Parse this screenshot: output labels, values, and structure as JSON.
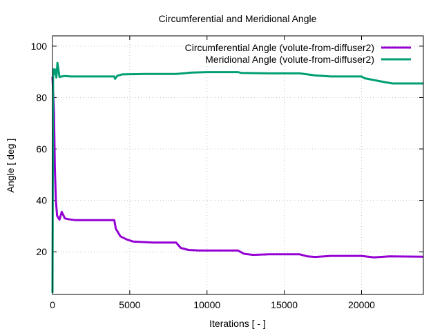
{
  "chart_data": {
    "type": "line",
    "title": "Circumferential and Meridional Angle",
    "xlabel": "Iterations [ - ]",
    "ylabel": "Angle [ deg ]",
    "xlim": [
      0,
      24000
    ],
    "ylim": [
      3.4,
      104
    ],
    "xticks": [
      0,
      5000,
      10000,
      15000,
      20000
    ],
    "yticks": [
      20,
      40,
      60,
      80,
      100
    ],
    "grid": true,
    "legend_position": "top-right",
    "series": [
      {
        "name": "Circumferential Angle (volute-from-diffuser2)",
        "color": "#9400d3",
        "x": [
          0,
          60,
          100,
          150,
          220,
          300,
          450,
          600,
          800,
          1000,
          1500,
          4000,
          4100,
          4400,
          4800,
          5200,
          6500,
          8000,
          8300,
          8800,
          9500,
          12000,
          12400,
          13000,
          14000,
          16000,
          16500,
          17000,
          18000,
          20000,
          20800,
          21800,
          24000
        ],
        "y": [
          88,
          80,
          74,
          53,
          40,
          34,
          32.5,
          35.5,
          33,
          32.7,
          32.3,
          32.3,
          29,
          26,
          24.8,
          24,
          23.6,
          23.6,
          21.5,
          20.7,
          20.5,
          20.5,
          19.2,
          18.8,
          19,
          19,
          18.2,
          18,
          18.4,
          18.4,
          17.8,
          18.2,
          18.1
        ]
      },
      {
        "name": "Meridional Angle (volute-from-diffuser2)",
        "color": "#009e73",
        "x": [
          0,
          40,
          80,
          150,
          250,
          320,
          450,
          600,
          800,
          1200,
          4000,
          4050,
          4200,
          4500,
          6000,
          8000,
          9000,
          10000,
          12000,
          12200,
          14000,
          16000,
          17000,
          18000,
          20000,
          20200,
          21500,
          22000,
          24000
        ],
        "y": [
          4,
          91,
          89,
          91,
          87.8,
          93.5,
          88,
          88.2,
          88.4,
          88.2,
          88.2,
          87.3,
          88.5,
          89,
          89.2,
          89.2,
          89.7,
          89.9,
          89.9,
          89.6,
          89.4,
          89.4,
          88.6,
          88.2,
          88.2,
          87.5,
          86,
          85.5,
          85.5
        ]
      }
    ]
  }
}
